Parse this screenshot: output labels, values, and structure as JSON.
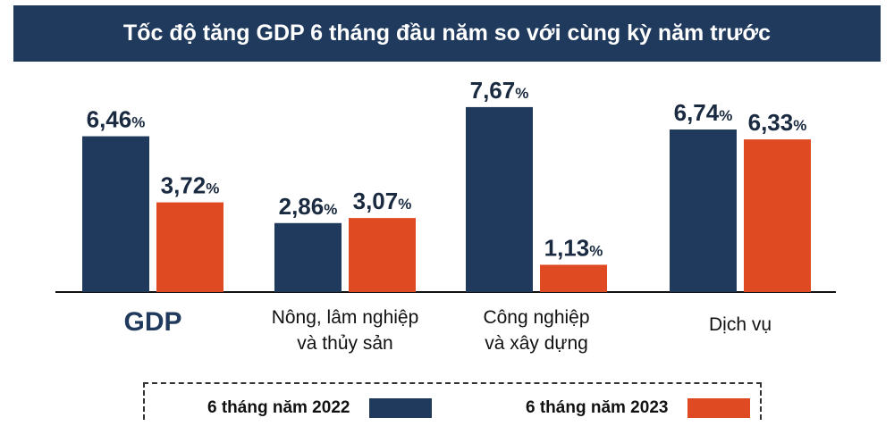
{
  "chart_data": {
    "type": "bar",
    "title": "Tốc độ tăng GDP 6 tháng đầu năm so với cùng kỳ năm trước",
    "categories": [
      [
        "GDP"
      ],
      [
        "Nông, lâm nghiệp",
        "và thủy sản"
      ],
      [
        "Công nghiệp",
        "và xây dựng"
      ],
      [
        "Dịch vụ"
      ]
    ],
    "series": [
      {
        "name": "6 tháng năm 2022",
        "values": [
          6.46,
          2.86,
          7.67,
          6.74
        ],
        "labels": [
          "6,46",
          "2,86",
          "7,67",
          "6,74"
        ],
        "color": "#1f3a5c"
      },
      {
        "name": "6 tháng năm 2023",
        "values": [
          3.72,
          3.07,
          1.13,
          6.33
        ],
        "labels": [
          "3,72",
          "3,07",
          "1,13",
          "6,33"
        ],
        "color": "#e04a22"
      }
    ],
    "unit": "%",
    "ylim": [
      0,
      8
    ],
    "grid": false,
    "legend_position": "bottom"
  }
}
